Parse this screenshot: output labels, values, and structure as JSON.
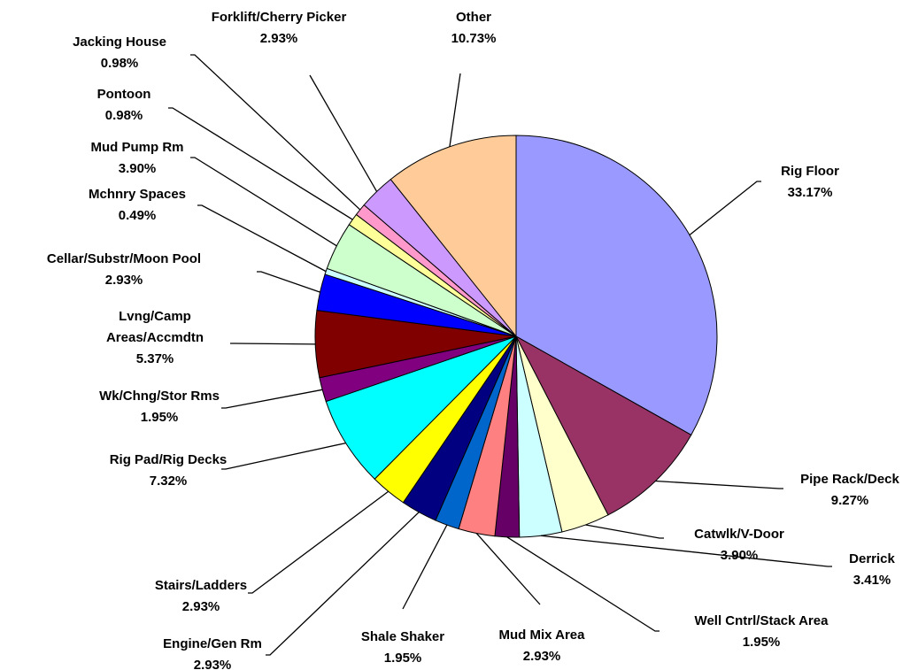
{
  "chart_data": {
    "type": "pie",
    "categories": [
      "Rig Floor",
      "Pipe Rack/Deck",
      "Catwlk/V-Door",
      "Derrick",
      "Well Cntrl/Stack Area",
      "Mud Mix Area",
      "Shale Shaker",
      "Engine/Gen Rm",
      "Stairs/Ladders",
      "Rig Pad/Rig Decks",
      "Wk/Chng/Stor Rms",
      "Lvng/Camp\nAreas/Accmdtn",
      "Cellar/Substr/Moon Pool",
      "Mchnry Spaces",
      "Mud Pump Rm",
      "Pontoon",
      "Jacking House",
      "Forklift/Cherry Picker",
      "Other"
    ],
    "values": [
      33.17,
      9.27,
      3.9,
      3.41,
      1.95,
      2.93,
      1.95,
      2.93,
      2.93,
      7.32,
      1.95,
      5.37,
      2.93,
      0.49,
      3.9,
      0.98,
      0.98,
      2.93,
      10.73
    ],
    "value_labels": [
      "33.17%",
      "9.27%",
      "3.90%",
      "3.41%",
      "1.95%",
      "2.93%",
      "1.95%",
      "2.93%",
      "2.93%",
      "7.32%",
      "1.95%",
      "5.37%",
      "2.93%",
      "0.49%",
      "3.90%",
      "0.98%",
      "0.98%",
      "2.93%",
      "10.73%"
    ],
    "colors": [
      "#9999ff",
      "#993366",
      "#ffffcc",
      "#ccffff",
      "#660066",
      "#ff8080",
      "#0066cc",
      "#000080",
      "#ffff00",
      "#00ffff",
      "#800080",
      "#800000",
      "#0000ff",
      "#ccffff",
      "#ccffcc",
      "#ffff99",
      "#ff99cc",
      "#cc99ff",
      "#ffcc99"
    ]
  }
}
